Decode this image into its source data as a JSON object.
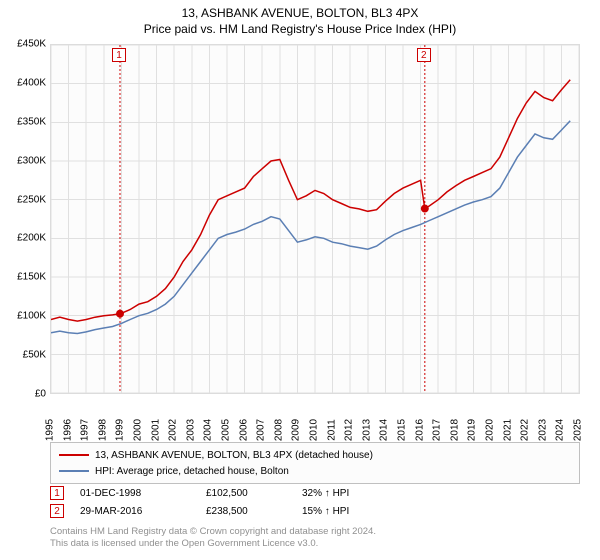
{
  "title": {
    "line1": "13, ASHBANK AVENUE, BOLTON, BL3 4PX",
    "line2": "Price paid vs. HM Land Registry's House Price Index (HPI)"
  },
  "chart": {
    "type": "line",
    "background_color": "#fcfcfc",
    "grid_color": "#e0e0e0",
    "border_color": "#dcdcdc",
    "x_axis": {
      "min": 1995,
      "max": 2025,
      "step": 1
    },
    "y_axis": {
      "min": 0,
      "max": 450000,
      "step": 50000,
      "tick_prefix": "£",
      "tick_suffix": "K",
      "ticks": [
        "£0",
        "£50K",
        "£100K",
        "£150K",
        "£200K",
        "£250K",
        "£300K",
        "£350K",
        "£400K",
        "£450K"
      ]
    },
    "series": [
      {
        "name": "13, ASHBANK AVENUE, BOLTON, BL3 4PX (detached house)",
        "color": "#cc0000",
        "line_width": 1.5,
        "data": [
          [
            1995,
            95000
          ],
          [
            1995.5,
            98000
          ],
          [
            1996,
            95000
          ],
          [
            1996.5,
            93000
          ],
          [
            1997,
            95000
          ],
          [
            1997.5,
            98000
          ],
          [
            1998,
            100000
          ],
          [
            1998.5,
            101000
          ],
          [
            1998.92,
            102500
          ],
          [
            1999,
            103000
          ],
          [
            1999.5,
            108000
          ],
          [
            2000,
            115000
          ],
          [
            2000.5,
            118000
          ],
          [
            2001,
            125000
          ],
          [
            2001.5,
            135000
          ],
          [
            2002,
            150000
          ],
          [
            2002.5,
            170000
          ],
          [
            2003,
            185000
          ],
          [
            2003.5,
            205000
          ],
          [
            2004,
            230000
          ],
          [
            2004.5,
            250000
          ],
          [
            2005,
            255000
          ],
          [
            2005.5,
            260000
          ],
          [
            2006,
            265000
          ],
          [
            2006.5,
            280000
          ],
          [
            2007,
            290000
          ],
          [
            2007.5,
            300000
          ],
          [
            2008,
            302000
          ],
          [
            2008.5,
            275000
          ],
          [
            2009,
            250000
          ],
          [
            2009.5,
            255000
          ],
          [
            2010,
            262000
          ],
          [
            2010.5,
            258000
          ],
          [
            2011,
            250000
          ],
          [
            2011.5,
            245000
          ],
          [
            2012,
            240000
          ],
          [
            2012.5,
            238000
          ],
          [
            2013,
            235000
          ],
          [
            2013.5,
            237000
          ],
          [
            2014,
            248000
          ],
          [
            2014.5,
            258000
          ],
          [
            2015,
            265000
          ],
          [
            2015.5,
            270000
          ],
          [
            2016,
            275000
          ],
          [
            2016.24,
            238500
          ],
          [
            2016.5,
            242000
          ],
          [
            2017,
            250000
          ],
          [
            2017.5,
            260000
          ],
          [
            2018,
            268000
          ],
          [
            2018.5,
            275000
          ],
          [
            2019,
            280000
          ],
          [
            2019.5,
            285000
          ],
          [
            2020,
            290000
          ],
          [
            2020.5,
            305000
          ],
          [
            2021,
            330000
          ],
          [
            2021.5,
            355000
          ],
          [
            2022,
            375000
          ],
          [
            2022.5,
            390000
          ],
          [
            2023,
            382000
          ],
          [
            2023.5,
            378000
          ],
          [
            2024,
            392000
          ],
          [
            2024.5,
            405000
          ]
        ]
      },
      {
        "name": "HPI: Average price, detached house, Bolton",
        "color": "#5b7fb4",
        "line_width": 1.5,
        "data": [
          [
            1995,
            78000
          ],
          [
            1995.5,
            80000
          ],
          [
            1996,
            78000
          ],
          [
            1996.5,
            77000
          ],
          [
            1997,
            79000
          ],
          [
            1997.5,
            82000
          ],
          [
            1998,
            84000
          ],
          [
            1998.5,
            86000
          ],
          [
            1999,
            90000
          ],
          [
            1999.5,
            95000
          ],
          [
            2000,
            100000
          ],
          [
            2000.5,
            103000
          ],
          [
            2001,
            108000
          ],
          [
            2001.5,
            115000
          ],
          [
            2002,
            125000
          ],
          [
            2002.5,
            140000
          ],
          [
            2003,
            155000
          ],
          [
            2003.5,
            170000
          ],
          [
            2004,
            185000
          ],
          [
            2004.5,
            200000
          ],
          [
            2005,
            205000
          ],
          [
            2005.5,
            208000
          ],
          [
            2006,
            212000
          ],
          [
            2006.5,
            218000
          ],
          [
            2007,
            222000
          ],
          [
            2007.5,
            228000
          ],
          [
            2008,
            225000
          ],
          [
            2008.5,
            210000
          ],
          [
            2009,
            195000
          ],
          [
            2009.5,
            198000
          ],
          [
            2010,
            202000
          ],
          [
            2010.5,
            200000
          ],
          [
            2011,
            195000
          ],
          [
            2011.5,
            193000
          ],
          [
            2012,
            190000
          ],
          [
            2012.5,
            188000
          ],
          [
            2013,
            186000
          ],
          [
            2013.5,
            190000
          ],
          [
            2014,
            198000
          ],
          [
            2014.5,
            205000
          ],
          [
            2015,
            210000
          ],
          [
            2015.5,
            214000
          ],
          [
            2016,
            218000
          ],
          [
            2016.5,
            223000
          ],
          [
            2017,
            228000
          ],
          [
            2017.5,
            233000
          ],
          [
            2018,
            238000
          ],
          [
            2018.5,
            243000
          ],
          [
            2019,
            247000
          ],
          [
            2019.5,
            250000
          ],
          [
            2020,
            254000
          ],
          [
            2020.5,
            265000
          ],
          [
            2021,
            285000
          ],
          [
            2021.5,
            305000
          ],
          [
            2022,
            320000
          ],
          [
            2022.5,
            335000
          ],
          [
            2023,
            330000
          ],
          [
            2023.5,
            328000
          ],
          [
            2024,
            340000
          ],
          [
            2024.5,
            352000
          ]
        ]
      }
    ],
    "events": [
      {
        "id": "1",
        "x": 1998.92,
        "date": "01-DEC-1998",
        "price_label": "£102,500",
        "delta_label": "32% ↑ HPI",
        "marker_y": 102500
      },
      {
        "id": "2",
        "x": 2016.24,
        "date": "29-MAR-2016",
        "price_label": "£238,500",
        "delta_label": "15% ↑ HPI",
        "marker_y": 238500
      }
    ]
  },
  "legend": {
    "items": [
      {
        "color": "#cc0000",
        "label": "13, ASHBANK AVENUE, BOLTON, BL3 4PX (detached house)"
      },
      {
        "color": "#5b7fb4",
        "label": "HPI: Average price, detached house, Bolton"
      }
    ]
  },
  "footer": {
    "line1": "Contains HM Land Registry data © Crown copyright and database right 2024.",
    "line2": "This data is licensed under the Open Government Licence v3.0."
  }
}
